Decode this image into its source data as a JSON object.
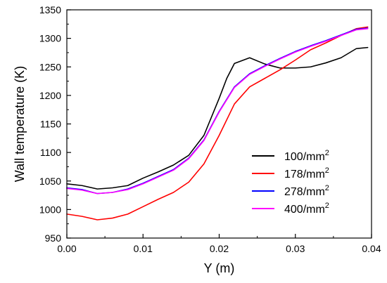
{
  "chart_data": {
    "type": "line",
    "xlabel": "Y (m)",
    "ylabel": "Wall temperature (K)",
    "xlim": [
      0,
      0.04
    ],
    "ylim": [
      950,
      1350
    ],
    "xticks": [
      "0.00",
      "0.01",
      "0.02",
      "0.03",
      "0.04"
    ],
    "yticks": [
      "950",
      "1000",
      "1050",
      "1100",
      "1150",
      "1200",
      "1250",
      "1300",
      "1350"
    ],
    "legend_position": "center-right",
    "series": [
      {
        "name": "100/mm",
        "name_sup": "2",
        "color": "#000000",
        "x": [
          0.0,
          0.002,
          0.004,
          0.006,
          0.008,
          0.01,
          0.012,
          0.014,
          0.016,
          0.018,
          0.02,
          0.021,
          0.022,
          0.024,
          0.026,
          0.028,
          0.03,
          0.032,
          0.034,
          0.036,
          0.038,
          0.0395
        ],
        "y": [
          1045,
          1042,
          1036,
          1038,
          1042,
          1055,
          1066,
          1078,
          1095,
          1130,
          1195,
          1230,
          1256,
          1266,
          1255,
          1248,
          1248,
          1250,
          1257,
          1266,
          1282,
          1284
        ]
      },
      {
        "name": "178/mm",
        "name_sup": "2",
        "color": "#ff0000",
        "x": [
          0.0,
          0.002,
          0.004,
          0.006,
          0.008,
          0.01,
          0.012,
          0.014,
          0.016,
          0.018,
          0.02,
          0.022,
          0.024,
          0.026,
          0.028,
          0.03,
          0.032,
          0.034,
          0.036,
          0.038,
          0.0395
        ],
        "y": [
          992,
          988,
          982,
          985,
          992,
          1005,
          1018,
          1030,
          1048,
          1080,
          1130,
          1185,
          1215,
          1230,
          1245,
          1262,
          1280,
          1292,
          1305,
          1317,
          1320
        ]
      },
      {
        "name": "278/mm",
        "name_sup": "2",
        "color": "#0000ff",
        "x": [
          0.0,
          0.002,
          0.004,
          0.006,
          0.008,
          0.01,
          0.012,
          0.014,
          0.016,
          0.018,
          0.02,
          0.022,
          0.024,
          0.026,
          0.028,
          0.03,
          0.032,
          0.034,
          0.036,
          0.038,
          0.0395
        ],
        "y": [
          1038,
          1035,
          1028,
          1030,
          1036,
          1046,
          1058,
          1070,
          1090,
          1122,
          1172,
          1215,
          1238,
          1252,
          1265,
          1277,
          1287,
          1296,
          1306,
          1316,
          1318
        ]
      },
      {
        "name": "400/mm",
        "name_sup": "2",
        "color": "#ff00ff",
        "x": [
          0.0,
          0.002,
          0.004,
          0.006,
          0.008,
          0.01,
          0.012,
          0.014,
          0.016,
          0.018,
          0.02,
          0.022,
          0.024,
          0.026,
          0.028,
          0.03,
          0.032,
          0.034,
          0.036,
          0.038,
          0.0395
        ],
        "y": [
          1037,
          1034,
          1028,
          1030,
          1035,
          1045,
          1057,
          1069,
          1089,
          1121,
          1171,
          1214,
          1237,
          1251,
          1264,
          1276,
          1286,
          1295,
          1305,
          1315,
          1317
        ]
      }
    ]
  }
}
